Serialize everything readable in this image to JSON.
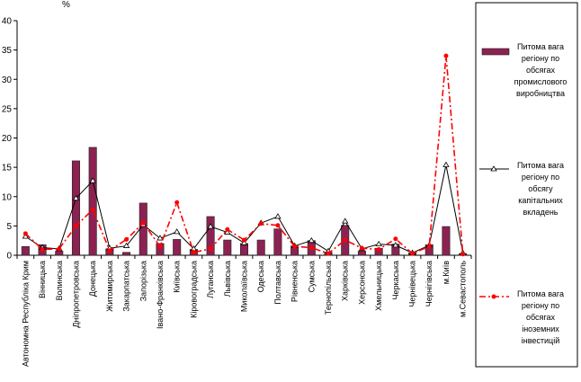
{
  "chart_data": {
    "type": "bar",
    "ylabel": "%",
    "ylim": [
      0,
      40
    ],
    "yticks": [
      0,
      5,
      10,
      15,
      20,
      25,
      30,
      35,
      40
    ],
    "grid": false,
    "legend_position": "right",
    "categories": [
      "Автономна Республіка Крим",
      "Вінницька",
      "Волинська",
      "Дніпропетровська",
      "Донецька",
      "Житомирська",
      "Закарпатська",
      "Запорізька",
      "Івано-Франківська",
      "Київська",
      "Кіровоградська",
      "Луганська",
      "Львівська",
      "Миколаївська",
      "Одеська",
      "Полтавська",
      "Рівненська",
      "Сумська",
      "Тернопільська",
      "Харківська",
      "Херсонська",
      "Хмельницька",
      "Черкаська",
      "Чернівецька",
      "Чернігівська",
      "м.Київ",
      "м.Севастополь"
    ],
    "series": [
      {
        "name": "Питома вага регіону по обсягах промислового виробництва",
        "type": "bar",
        "color": "#8b2252",
        "values": [
          1.5,
          1.8,
          0.7,
          16.1,
          18.4,
          1.1,
          0.5,
          8.9,
          2.0,
          2.7,
          1.0,
          6.6,
          2.6,
          2.0,
          2.6,
          4.5,
          1.6,
          2.5,
          0.5,
          5.1,
          0.7,
          1.2,
          1.9,
          0.4,
          1.8,
          4.9,
          0.3
        ]
      },
      {
        "name": "Питома вага регіону по обсягу капітальних вкладень",
        "type": "line",
        "color": "#000000",
        "values": [
          3.2,
          1.3,
          1.1,
          9.7,
          12.7,
          1.2,
          1.6,
          5.2,
          2.9,
          4.0,
          1.1,
          4.9,
          3.9,
          2.1,
          5.5,
          6.6,
          1.6,
          2.5,
          0.7,
          5.8,
          1.1,
          1.9,
          1.7,
          0.4,
          1.7,
          15.4,
          0.4
        ]
      },
      {
        "name": "Питома вага регіону по обсягах іноземних інвестицій",
        "type": "line",
        "color": "#ff0000",
        "values": [
          3.7,
          1.0,
          1.1,
          5.0,
          7.8,
          0.8,
          2.7,
          5.5,
          1.5,
          9.0,
          0.5,
          1.1,
          4.4,
          2.6,
          5.4,
          5.1,
          1.5,
          1.3,
          0.3,
          2.6,
          1.2,
          1.0,
          2.8,
          0.3,
          1.5,
          34.0,
          0.2
        ]
      }
    ]
  }
}
